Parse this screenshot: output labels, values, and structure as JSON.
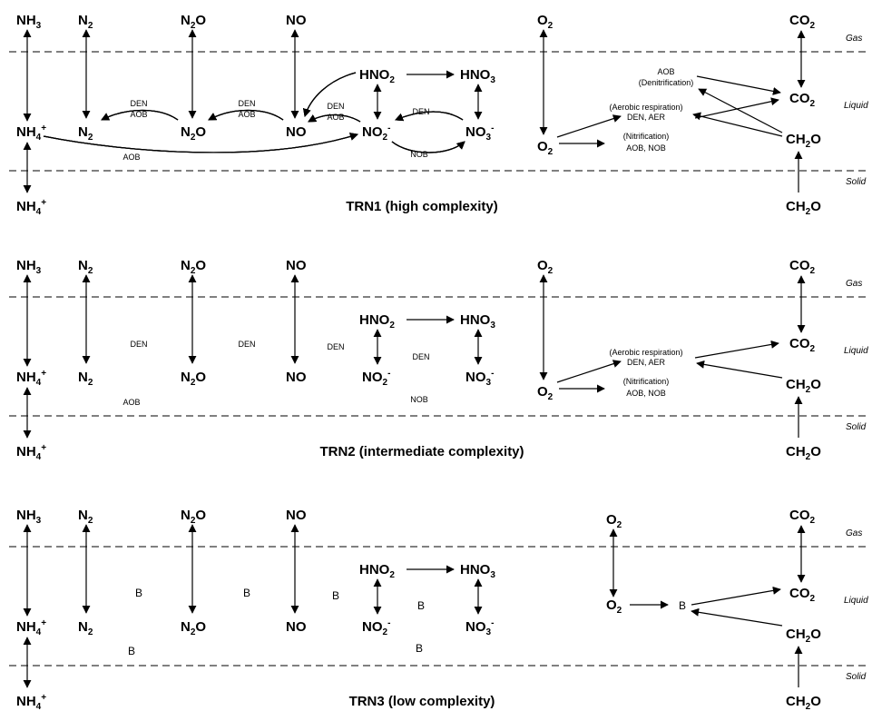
{
  "species": {
    "nh3": {
      "base": "NH",
      "sub": "3",
      "sup": ""
    },
    "n2": {
      "base": "N",
      "sub": "2",
      "sup": ""
    },
    "n2o": {
      "base": "N",
      "sub": "2",
      "tail": "O"
    },
    "no": {
      "base": "NO"
    },
    "nh4": {
      "base": "NH",
      "sub": "4",
      "sup": "+"
    },
    "hno2": {
      "base": "HNO",
      "sub": "2"
    },
    "hno3": {
      "base": "HNO",
      "sub": "3"
    },
    "no2m": {
      "base": "NO",
      "sub": "2",
      "sup": "-"
    },
    "no3m": {
      "base": "NO",
      "sub": "3",
      "sup": "-"
    },
    "o2": {
      "base": "O",
      "sub": "2"
    },
    "co2": {
      "base": "CO",
      "sub": "2"
    },
    "ch2o": {
      "base": "CH",
      "sub": "2",
      "tail": "O"
    }
  },
  "phases": {
    "gas": "Gas",
    "liquid": "Liquid",
    "solid": "Solid"
  },
  "labels": {
    "den": "DEN",
    "aob": "AOB",
    "nob": "NOB",
    "b": "B",
    "denitrification": "(Denitrification)",
    "aerobic_respiration": "(Aerobic respiration)",
    "den_aer": "DEN, AER",
    "nitrification": "(Nitrification)",
    "aob_nob": "AOB, NOB"
  },
  "panels": [
    {
      "title": "TRN1 (high complexity)"
    },
    {
      "title": "TRN2 (intermediate complexity)"
    },
    {
      "title": "TRN3 (low complexity)"
    }
  ]
}
